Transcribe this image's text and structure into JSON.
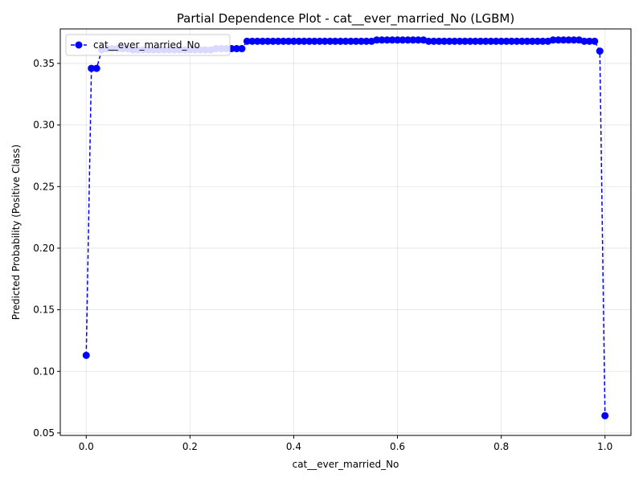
{
  "chart_data": {
    "type": "line",
    "title": "Partial Dependence Plot - cat__ever_married_No (LGBM)",
    "xlabel": "cat__ever_married_No",
    "ylabel": "Predicted Probability (Positive Class)",
    "xlim": [
      -0.05,
      1.05
    ],
    "ylim": [
      0.048,
      0.378
    ],
    "xticks": [
      0.0,
      0.2,
      0.4,
      0.6,
      0.8,
      1.0
    ],
    "xtick_labels": [
      "0.0",
      "0.2",
      "0.4",
      "0.6",
      "0.8",
      "1.0"
    ],
    "yticks": [
      0.05,
      0.1,
      0.15,
      0.2,
      0.25,
      0.3,
      0.35
    ],
    "ytick_labels": [
      "0.05",
      "0.10",
      "0.15",
      "0.20",
      "0.25",
      "0.30",
      "0.35"
    ],
    "grid": true,
    "legend_position": "top-left",
    "series": [
      {
        "name": "cat__ever_married_No",
        "color": "#0000ff",
        "linestyle": "dashed",
        "marker": "circle",
        "x": [
          0.0,
          0.01,
          0.02,
          0.03,
          0.04,
          0.05,
          0.06,
          0.07,
          0.08,
          0.09,
          0.1,
          0.11,
          0.12,
          0.13,
          0.14,
          0.15,
          0.16,
          0.17,
          0.18,
          0.19,
          0.2,
          0.21,
          0.22,
          0.23,
          0.24,
          0.25,
          0.26,
          0.27,
          0.28,
          0.29,
          0.3,
          0.31,
          0.32,
          0.33,
          0.34,
          0.35,
          0.36,
          0.37,
          0.38,
          0.39,
          0.4,
          0.41,
          0.42,
          0.43,
          0.44,
          0.45,
          0.46,
          0.47,
          0.48,
          0.49,
          0.5,
          0.51,
          0.52,
          0.53,
          0.54,
          0.55,
          0.56,
          0.57,
          0.58,
          0.59,
          0.6,
          0.61,
          0.62,
          0.63,
          0.64,
          0.65,
          0.66,
          0.67,
          0.68,
          0.69,
          0.7,
          0.71,
          0.72,
          0.73,
          0.74,
          0.75,
          0.76,
          0.77,
          0.78,
          0.79,
          0.8,
          0.81,
          0.82,
          0.83,
          0.84,
          0.85,
          0.86,
          0.87,
          0.88,
          0.89,
          0.9,
          0.91,
          0.92,
          0.93,
          0.94,
          0.95,
          0.96,
          0.97,
          0.98,
          0.99,
          1.0
        ],
        "y": [
          0.113,
          0.346,
          0.346,
          0.361,
          0.362,
          0.362,
          0.362,
          0.362,
          0.362,
          0.361,
          0.361,
          0.361,
          0.361,
          0.361,
          0.361,
          0.361,
          0.361,
          0.361,
          0.361,
          0.361,
          0.361,
          0.361,
          0.361,
          0.361,
          0.361,
          0.362,
          0.362,
          0.362,
          0.362,
          0.362,
          0.362,
          0.368,
          0.368,
          0.368,
          0.368,
          0.368,
          0.368,
          0.368,
          0.368,
          0.368,
          0.368,
          0.368,
          0.368,
          0.368,
          0.368,
          0.368,
          0.368,
          0.368,
          0.368,
          0.368,
          0.368,
          0.368,
          0.368,
          0.368,
          0.368,
          0.368,
          0.369,
          0.369,
          0.369,
          0.369,
          0.369,
          0.369,
          0.369,
          0.369,
          0.369,
          0.369,
          0.368,
          0.368,
          0.368,
          0.368,
          0.368,
          0.368,
          0.368,
          0.368,
          0.368,
          0.368,
          0.368,
          0.368,
          0.368,
          0.368,
          0.368,
          0.368,
          0.368,
          0.368,
          0.368,
          0.368,
          0.368,
          0.368,
          0.368,
          0.368,
          0.369,
          0.369,
          0.369,
          0.369,
          0.369,
          0.369,
          0.368,
          0.368,
          0.368,
          0.36,
          0.064
        ]
      }
    ]
  }
}
